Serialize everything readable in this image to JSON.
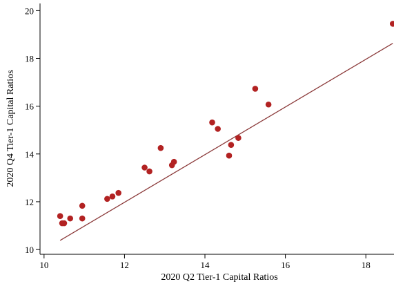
{
  "chart_data": {
    "type": "scatter",
    "title": "",
    "xlabel": "2020 Q2 Tier-1 Capital Ratios",
    "ylabel": "2020 Q4 Tier-1 Capital Ratios",
    "xlim": [
      9.9,
      18.7
    ],
    "ylim": [
      9.8,
      20.3
    ],
    "x_ticks": [
      10,
      12,
      14,
      16,
      18
    ],
    "y_ticks": [
      10,
      12,
      14,
      16,
      18,
      20
    ],
    "grid": false,
    "colors": {
      "points": "#b22222",
      "fit_line": "#8b3a3a"
    },
    "series": [
      {
        "type": "scatter",
        "points": [
          [
            10.4,
            11.4
          ],
          [
            10.45,
            11.1
          ],
          [
            10.5,
            11.1
          ],
          [
            10.65,
            11.3
          ],
          [
            10.95,
            11.3
          ],
          [
            10.95,
            11.83
          ],
          [
            11.57,
            12.12
          ],
          [
            11.7,
            12.22
          ],
          [
            11.85,
            12.37
          ],
          [
            12.5,
            13.43
          ],
          [
            12.62,
            13.27
          ],
          [
            12.9,
            14.25
          ],
          [
            13.18,
            13.53
          ],
          [
            13.23,
            13.67
          ],
          [
            14.18,
            15.32
          ],
          [
            14.32,
            15.05
          ],
          [
            14.6,
            13.93
          ],
          [
            14.65,
            14.38
          ],
          [
            14.83,
            14.67
          ],
          [
            15.25,
            16.73
          ],
          [
            15.58,
            16.07
          ],
          [
            18.67,
            19.45
          ]
        ]
      },
      {
        "type": "line",
        "points": [
          [
            10.4,
            10.38
          ],
          [
            18.67,
            18.63
          ]
        ]
      }
    ]
  }
}
